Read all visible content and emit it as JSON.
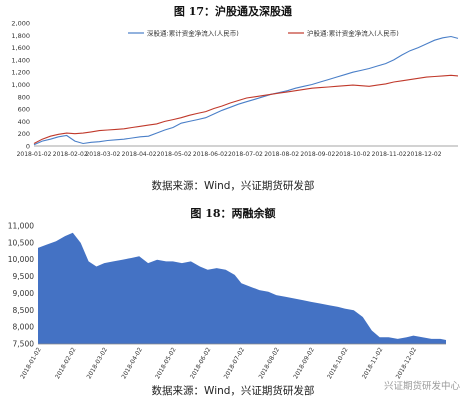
{
  "figure1": {
    "title": "图 17：沪股通及深股通",
    "source": "数据来源：Wind，兴证期货研发部"
  },
  "figure2": {
    "title": "图 18：两融余额",
    "source": "数据来源：Wind，兴证期货研发部"
  },
  "watermark": "兴证期货研发中心",
  "chart_data": [
    {
      "type": "line",
      "title": "图 17：沪股通及深股通",
      "xlabel": "",
      "ylabel": "",
      "ylim": [
        0,
        2000
      ],
      "yticks": [
        0,
        200,
        400,
        600,
        800,
        1000,
        1200,
        1400,
        1600,
        1800,
        2000
      ],
      "xticks": [
        "2018-01-02",
        "2018-02-02",
        "2018-03-02",
        "2018-04-02",
        "2018-05-02",
        "2018-06-02",
        "2018-07-02",
        "2018-08-02",
        "2018-09-02",
        "2018-10-02",
        "2018-11-02",
        "2018-12-02"
      ],
      "x": [
        "2018-01-02",
        "2018-01-09",
        "2018-01-16",
        "2018-01-23",
        "2018-01-30",
        "2018-02-06",
        "2018-02-13",
        "2018-02-20",
        "2018-02-27",
        "2018-03-06",
        "2018-03-13",
        "2018-03-20",
        "2018-03-27",
        "2018-04-03",
        "2018-04-10",
        "2018-04-17",
        "2018-04-24",
        "2018-05-01",
        "2018-05-08",
        "2018-05-15",
        "2018-05-22",
        "2018-05-29",
        "2018-06-05",
        "2018-06-12",
        "2018-06-19",
        "2018-06-26",
        "2018-07-03",
        "2018-07-10",
        "2018-07-17",
        "2018-07-24",
        "2018-07-31",
        "2018-08-07",
        "2018-08-14",
        "2018-08-21",
        "2018-08-28",
        "2018-09-04",
        "2018-09-11",
        "2018-09-18",
        "2018-09-25",
        "2018-10-02",
        "2018-10-09",
        "2018-10-16",
        "2018-10-23",
        "2018-10-30",
        "2018-11-06",
        "2018-11-13",
        "2018-11-20",
        "2018-11-27",
        "2018-12-04",
        "2018-12-11",
        "2018-12-18",
        "2018-12-25",
        "2018-12-31"
      ],
      "series": [
        {
          "name": "深股通:累计资金净流入(人民币)",
          "color": "#4a7fc8",
          "values": [
            20,
            80,
            110,
            150,
            170,
            80,
            40,
            60,
            70,
            90,
            100,
            110,
            130,
            150,
            160,
            210,
            260,
            300,
            370,
            400,
            430,
            460,
            520,
            580,
            630,
            680,
            720,
            760,
            800,
            840,
            870,
            900,
            940,
            970,
            1000,
            1040,
            1080,
            1120,
            1160,
            1200,
            1230,
            1260,
            1300,
            1340,
            1400,
            1480,
            1550,
            1600,
            1660,
            1720,
            1760,
            1780,
            1750
          ]
        },
        {
          "name": "沪股通:累计资金净流入(人民币)",
          "color": "#c0392b",
          "values": [
            40,
            110,
            160,
            190,
            210,
            200,
            210,
            230,
            250,
            260,
            270,
            280,
            300,
            320,
            340,
            360,
            400,
            430,
            460,
            500,
            530,
            560,
            610,
            650,
            700,
            740,
            780,
            800,
            820,
            840,
            860,
            880,
            900,
            920,
            940,
            950,
            960,
            970,
            980,
            990,
            980,
            970,
            990,
            1010,
            1040,
            1060,
            1080,
            1100,
            1120,
            1130,
            1140,
            1150,
            1140
          ]
        }
      ],
      "legend_position": "top"
    },
    {
      "type": "area",
      "title": "图 18：两融余额",
      "xlabel": "",
      "ylabel": "",
      "ylim": [
        7500,
        11000
      ],
      "yticks": [
        7500,
        8000,
        8500,
        9000,
        9500,
        10000,
        10500,
        11000
      ],
      "xticks": [
        "2018-01-02",
        "2018-02-02",
        "2018-03-02",
        "2018-04-02",
        "2018-05-02",
        "2018-06-02",
        "2018-07-02",
        "2018-08-02",
        "2018-09-02",
        "2018-10-02",
        "2018-11-02",
        "2018-12-02"
      ],
      "x": [
        "2018-01-02",
        "2018-01-10",
        "2018-01-18",
        "2018-01-26",
        "2018-02-02",
        "2018-02-09",
        "2018-02-16",
        "2018-02-23",
        "2018-03-02",
        "2018-03-10",
        "2018-03-18",
        "2018-03-26",
        "2018-04-02",
        "2018-04-10",
        "2018-04-18",
        "2018-04-26",
        "2018-05-02",
        "2018-05-10",
        "2018-05-18",
        "2018-05-26",
        "2018-06-02",
        "2018-06-10",
        "2018-06-18",
        "2018-06-26",
        "2018-07-02",
        "2018-07-10",
        "2018-07-18",
        "2018-07-26",
        "2018-08-02",
        "2018-08-10",
        "2018-08-18",
        "2018-08-26",
        "2018-09-02",
        "2018-09-10",
        "2018-09-18",
        "2018-09-26",
        "2018-10-02",
        "2018-10-10",
        "2018-10-18",
        "2018-10-26",
        "2018-11-02",
        "2018-11-10",
        "2018-11-18",
        "2018-11-26",
        "2018-12-02",
        "2018-12-10",
        "2018-12-18",
        "2018-12-26",
        "2018-12-31"
      ],
      "series": [
        {
          "name": "两融余额",
          "color": "#4472c4",
          "values": [
            10350,
            10450,
            10550,
            10700,
            10800,
            10500,
            9950,
            9800,
            9900,
            9950,
            10000,
            10050,
            10100,
            9900,
            10000,
            9950,
            9950,
            9900,
            9950,
            9800,
            9700,
            9750,
            9700,
            9550,
            9300,
            9200,
            9100,
            9050,
            8950,
            8900,
            8850,
            8800,
            8750,
            8700,
            8650,
            8600,
            8550,
            8500,
            8300,
            7900,
            7700,
            7700,
            7650,
            7700,
            7750,
            7700,
            7650,
            7650,
            7620
          ]
        }
      ]
    }
  ]
}
